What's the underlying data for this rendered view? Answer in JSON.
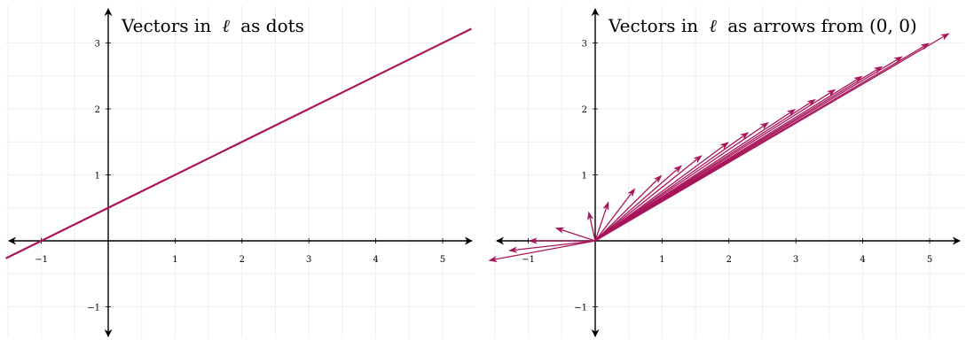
{
  "colors": {
    "line": "#a8155a",
    "axis": "#000000",
    "grid": "#eeeeee",
    "background": "#ffffff"
  },
  "panels": [
    {
      "id": "dots",
      "title_prefix": "Vectors in",
      "title_symbol": "ℓ",
      "title_suffix": "as dots",
      "xlim": [
        -1.5,
        5.4
      ],
      "ylim": [
        -1.45,
        3.45
      ],
      "x_ticks": [
        -1,
        1,
        2,
        3,
        4,
        5
      ],
      "y_ticks": [
        -1,
        1,
        2,
        3
      ],
      "x_tick_labels": [
        "−1",
        "1",
        "2",
        "3",
        "4",
        "5"
      ],
      "y_tick_labels": [
        "−1",
        "1",
        "2",
        "3"
      ],
      "line": {
        "slope": 0.5,
        "intercept": 0.5
      }
    },
    {
      "id": "arrows",
      "title_prefix": "Vectors in",
      "title_symbol": "ℓ",
      "title_suffix": "as arrows from (0, 0)",
      "xlim": [
        -1.5,
        5.4
      ],
      "ylim": [
        -1.45,
        3.45
      ],
      "x_ticks": [
        -1,
        1,
        2,
        3,
        4,
        5
      ],
      "y_ticks": [
        -1,
        1,
        2,
        3
      ],
      "x_tick_labels": [
        "−1",
        "1",
        "2",
        "3",
        "4",
        "5"
      ],
      "y_tick_labels": [
        "−1",
        "1",
        "2",
        "3"
      ],
      "vectors": [
        [
          -1.6,
          -0.3
        ],
        [
          -1.3,
          -0.15
        ],
        [
          -1.0,
          0.0
        ],
        [
          -0.6,
          0.2
        ],
        [
          -0.1,
          0.45
        ],
        [
          0.2,
          0.6
        ],
        [
          0.6,
          0.8
        ],
        [
          1.0,
          1.0
        ],
        [
          1.3,
          1.15
        ],
        [
          1.6,
          1.3
        ],
        [
          2.0,
          1.5
        ],
        [
          2.3,
          1.65
        ],
        [
          2.6,
          1.8
        ],
        [
          3.0,
          2.0
        ],
        [
          3.3,
          2.15
        ],
        [
          3.6,
          2.3
        ],
        [
          4.0,
          2.5
        ],
        [
          4.3,
          2.65
        ],
        [
          4.6,
          2.8
        ],
        [
          5.0,
          3.0
        ],
        [
          5.3,
          3.15
        ]
      ]
    }
  ]
}
